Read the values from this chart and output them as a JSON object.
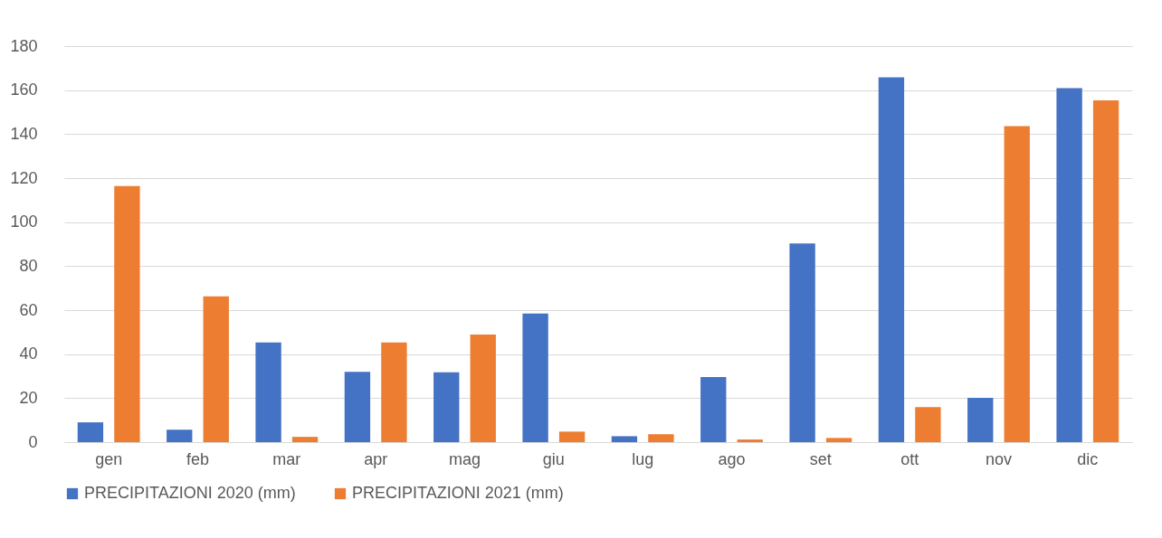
{
  "chart_data": {
    "type": "bar",
    "categories": [
      "gen",
      "feb",
      "mar",
      "apr",
      "mag",
      "giu",
      "lug",
      "ago",
      "set",
      "ott",
      "nov",
      "dic"
    ],
    "series": [
      {
        "name": "PRECIPITAZIONI 2020 (mm)",
        "color": "#4472c4",
        "values": [
          9,
          5.6,
          45.3,
          32,
          31.7,
          58.5,
          2.7,
          29.6,
          90.3,
          165.8,
          20.1,
          160.9
        ]
      },
      {
        "name": "PRECIPITAZIONI 2021 (mm)",
        "color": "#ed7d31",
        "values": [
          116.4,
          66.3,
          2.4,
          45.3,
          48.9,
          4.8,
          3.6,
          1.2,
          1.9,
          15.9,
          143.6,
          155.3
        ]
      }
    ],
    "ylim": [
      0,
      180
    ],
    "yticks": [
      0,
      20,
      40,
      60,
      80,
      100,
      120,
      140,
      160,
      180
    ],
    "grid": "y",
    "legend": "bottom"
  }
}
